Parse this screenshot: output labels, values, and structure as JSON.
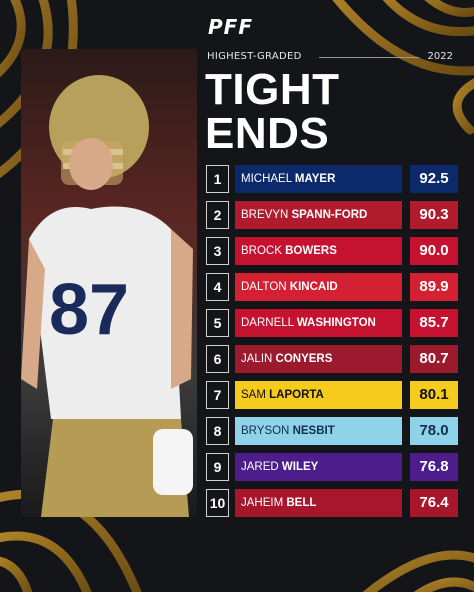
{
  "brand": {
    "logo_text": "PFF"
  },
  "header": {
    "subtitle": "HIGHEST-GRADED",
    "year": "2022",
    "title_line1": "TIGHT",
    "title_line2": "ENDS"
  },
  "players": [
    {
      "rank": "1",
      "first": "MICHAEL",
      "last": "MAYER",
      "grade": "92.5",
      "bar_color": "#0c2a6b",
      "text_color": "#ffffff",
      "grade_bg": "#0c2a6b",
      "grade_color": "#ffffff"
    },
    {
      "rank": "2",
      "first": "BREVYN",
      "last": "SPANN-FORD",
      "grade": "90.3",
      "bar_color": "#b01c2e",
      "text_color": "#ffffff",
      "grade_bg": "#b01c2e",
      "grade_color": "#ffffff"
    },
    {
      "rank": "3",
      "first": "BROCK",
      "last": "BOWERS",
      "grade": "90.0",
      "bar_color": "#c41230",
      "text_color": "#ffffff",
      "grade_bg": "#c41230",
      "grade_color": "#ffffff"
    },
    {
      "rank": "4",
      "first": "DALTON",
      "last": "KINCAID",
      "grade": "89.9",
      "bar_color": "#d42033",
      "text_color": "#ffffff",
      "grade_bg": "#d42033",
      "grade_color": "#ffffff"
    },
    {
      "rank": "5",
      "first": "DARNELL",
      "last": "WASHINGTON",
      "grade": "85.7",
      "bar_color": "#c41230",
      "text_color": "#ffffff",
      "grade_bg": "#c41230",
      "grade_color": "#ffffff"
    },
    {
      "rank": "6",
      "first": "JALIN",
      "last": "CONYERS",
      "grade": "80.7",
      "bar_color": "#9b1a2d",
      "text_color": "#ffffff",
      "grade_bg": "#9b1a2d",
      "grade_color": "#ffffff"
    },
    {
      "rank": "7",
      "first": "SAM",
      "last": "LAPORTA",
      "grade": "80.1",
      "bar_color": "#f5cb1d",
      "text_color": "#111111",
      "grade_bg": "#f5cb1d",
      "grade_color": "#111111"
    },
    {
      "rank": "8",
      "first": "BRYSON",
      "last": "NESBIT",
      "grade": "78.0",
      "bar_color": "#8fd3e8",
      "text_color": "#10304a",
      "grade_bg": "#8fd3e8",
      "grade_color": "#10304a"
    },
    {
      "rank": "9",
      "first": "JARED",
      "last": "WILEY",
      "grade": "76.8",
      "bar_color": "#4d1d8c",
      "text_color": "#ffffff",
      "grade_bg": "#4d1d8c",
      "grade_color": "#ffffff"
    },
    {
      "rank": "10",
      "first": "JAHEIM",
      "last": "BELL",
      "grade": "76.4",
      "bar_color": "#a7162a",
      "text_color": "#ffffff",
      "grade_bg": "#a7162a",
      "grade_color": "#ffffff"
    }
  ],
  "icons": {
    "photo": "football-player-photo",
    "background": "gold-swirl-pattern"
  }
}
